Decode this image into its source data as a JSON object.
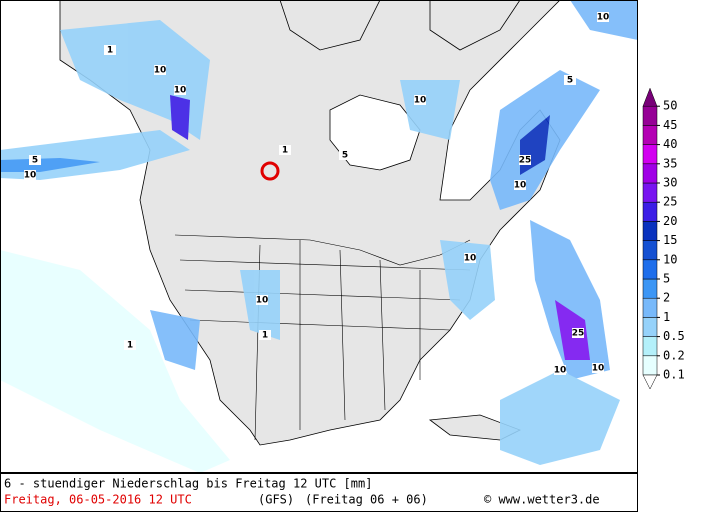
{
  "map": {
    "caption": "6 - stuendiger Niederschlag bis Freitag 12 UTC [mm]",
    "run_date": "Freitag, 06-05-2016  12 UTC",
    "model": "(GFS)",
    "valid": "(Freitag 06 + 06)",
    "credit": "© www.wetter3.de",
    "legend": {
      "levels": [
        0.1,
        0.2,
        0.5,
        1,
        2,
        5,
        10,
        15,
        20,
        25,
        30,
        35,
        40,
        45,
        50
      ],
      "colors": [
        "#e6ffff",
        "#b4f0fa",
        "#96d2fa",
        "#78b9fa",
        "#3c96f5",
        "#1e6eeb",
        "#1450d2",
        "#0a32be",
        "#3c1ee6",
        "#7814f0",
        "#a000e6",
        "#d200f0",
        "#b400b4",
        "#960096"
      ],
      "top_color": "#780078"
    },
    "contour_labels": [
      "10",
      "10",
      "1",
      "5",
      "10",
      "10",
      "25",
      "10",
      "5",
      "25",
      "10",
      "10",
      "10",
      "1",
      "5",
      "1",
      "1",
      "10",
      "10"
    ]
  }
}
